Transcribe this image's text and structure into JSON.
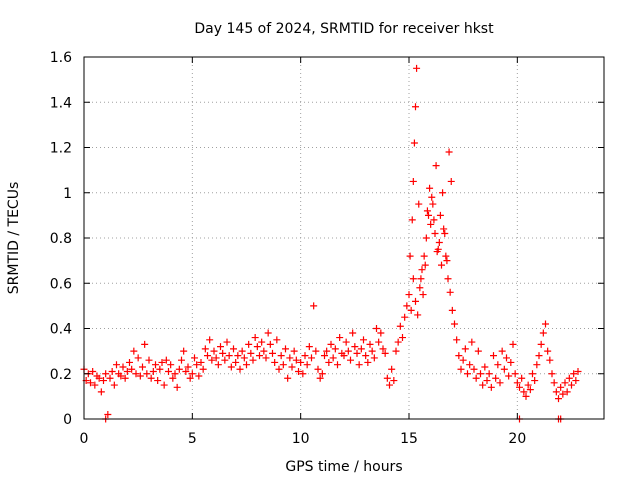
{
  "chart_data": {
    "type": "scatter",
    "title": "Day 145 of 2024, SRMTID for receiver hkst",
    "xlabel": "GPS time / hours",
    "ylabel": "SRMTID / TECUs",
    "xlim": [
      0,
      24
    ],
    "ylim": [
      0,
      1.6
    ],
    "grid": true,
    "xticks": [
      0,
      5,
      10,
      15,
      20
    ],
    "xtick_labels": [
      "0",
      "5",
      "10",
      "15",
      "20"
    ],
    "yticks": [
      0,
      0.2,
      0.4,
      0.6,
      0.8,
      1.0,
      1.2,
      1.4,
      1.6
    ],
    "ytick_labels": [
      "0",
      "0.2",
      "0.4",
      "0.6",
      "0.8",
      "1",
      "1.2",
      "1.4",
      "1.6"
    ],
    "marker": "+",
    "series": [
      {
        "name": "SRMTID",
        "color": "#ff0000",
        "x": [
          0.0,
          0.1,
          0.2,
          0.3,
          0.4,
          0.5,
          0.6,
          0.7,
          0.8,
          0.9,
          1.0,
          1.1,
          1.2,
          1.3,
          1.4,
          1.5,
          1.6,
          1.7,
          1.8,
          1.9,
          2.0,
          2.1,
          2.2,
          2.3,
          2.4,
          2.5,
          2.6,
          2.7,
          2.8,
          2.9,
          3.0,
          3.1,
          3.2,
          3.3,
          3.4,
          3.5,
          3.6,
          3.7,
          3.8,
          3.9,
          4.0,
          4.1,
          4.2,
          4.3,
          4.4,
          4.5,
          4.6,
          4.7,
          4.8,
          4.9,
          5.0,
          5.1,
          5.2,
          5.3,
          5.4,
          5.5,
          5.6,
          5.7,
          5.8,
          5.9,
          6.0,
          6.1,
          6.2,
          6.3,
          6.4,
          6.5,
          6.6,
          6.7,
          6.8,
          6.9,
          7.0,
          7.1,
          7.2,
          7.3,
          7.4,
          7.5,
          7.6,
          7.7,
          7.8,
          7.9,
          8.0,
          8.1,
          8.2,
          8.3,
          8.4,
          8.5,
          8.6,
          8.7,
          8.8,
          8.9,
          9.0,
          9.1,
          9.2,
          9.3,
          9.4,
          9.5,
          9.6,
          9.7,
          9.8,
          9.9,
          10.0,
          10.1,
          10.2,
          10.3,
          10.4,
          10.5,
          10.6,
          10.7,
          10.8,
          10.9,
          11.0,
          11.1,
          11.2,
          11.3,
          11.4,
          11.5,
          11.6,
          11.7,
          11.8,
          11.9,
          12.0,
          12.1,
          12.2,
          12.3,
          12.4,
          12.5,
          12.6,
          12.7,
          12.8,
          12.9,
          13.0,
          13.1,
          13.2,
          13.3,
          13.4,
          13.5,
          13.6,
          13.7,
          13.8,
          13.9,
          14.0,
          14.1,
          14.2,
          14.3,
          14.4,
          14.5,
          14.6,
          14.7,
          14.8,
          14.9,
          15.0,
          15.1,
          15.2,
          15.3,
          15.4,
          15.5,
          15.6,
          15.7,
          15.8,
          15.9,
          16.0,
          16.1,
          16.2,
          16.3,
          16.4,
          16.5,
          16.6,
          16.7,
          16.8,
          16.9,
          17.0,
          17.1,
          17.2,
          17.3,
          17.4,
          17.5,
          17.6,
          17.7,
          17.8,
          17.9,
          18.0,
          18.1,
          18.2,
          18.3,
          18.4,
          18.5,
          18.6,
          18.7,
          18.8,
          18.9,
          19.0,
          19.1,
          19.2,
          19.3,
          19.4,
          19.5,
          19.6,
          19.7,
          19.8,
          19.9,
          20.0,
          20.1,
          20.2,
          20.3,
          20.4,
          20.5,
          20.6,
          20.7,
          20.8,
          20.9,
          21.0,
          21.1,
          21.2,
          21.3,
          21.4,
          21.5,
          21.6,
          21.7,
          21.8,
          21.9,
          22.0,
          22.1,
          22.2,
          22.3,
          22.4,
          22.5,
          22.6,
          22.7,
          22.8,
          15.05,
          15.15,
          15.2,
          15.25,
          15.3,
          15.35,
          15.45,
          15.55,
          15.65,
          15.75,
          15.85,
          15.95,
          16.05,
          16.15,
          16.25,
          16.35,
          16.45,
          16.55,
          16.65,
          16.75,
          16.85,
          16.95,
          1.0,
          20.1,
          21.9,
          22.0
        ],
        "y": [
          0.22,
          0.17,
          0.2,
          0.16,
          0.21,
          0.15,
          0.19,
          0.18,
          0.12,
          0.17,
          0.2,
          0.02,
          0.18,
          0.21,
          0.15,
          0.24,
          0.2,
          0.19,
          0.23,
          0.18,
          0.21,
          0.25,
          0.22,
          0.3,
          0.2,
          0.27,
          0.19,
          0.23,
          0.33,
          0.2,
          0.26,
          0.18,
          0.21,
          0.24,
          0.17,
          0.22,
          0.25,
          0.15,
          0.26,
          0.21,
          0.24,
          0.18,
          0.2,
          0.14,
          0.22,
          0.26,
          0.3,
          0.21,
          0.23,
          0.18,
          0.2,
          0.27,
          0.24,
          0.19,
          0.25,
          0.22,
          0.31,
          0.28,
          0.35,
          0.26,
          0.3,
          0.27,
          0.24,
          0.32,
          0.29,
          0.26,
          0.34,
          0.28,
          0.23,
          0.31,
          0.25,
          0.28,
          0.22,
          0.3,
          0.27,
          0.24,
          0.33,
          0.29,
          0.26,
          0.36,
          0.32,
          0.28,
          0.34,
          0.3,
          0.27,
          0.38,
          0.33,
          0.29,
          0.25,
          0.35,
          0.22,
          0.28,
          0.24,
          0.31,
          0.18,
          0.27,
          0.23,
          0.3,
          0.26,
          0.21,
          0.25,
          0.2,
          0.28,
          0.24,
          0.32,
          0.27,
          0.5,
          0.3,
          0.22,
          0.18,
          0.2,
          0.28,
          0.3,
          0.25,
          0.33,
          0.27,
          0.31,
          0.24,
          0.36,
          0.29,
          0.28,
          0.34,
          0.3,
          0.26,
          0.38,
          0.32,
          0.29,
          0.24,
          0.31,
          0.35,
          0.28,
          0.25,
          0.33,
          0.3,
          0.27,
          0.4,
          0.34,
          0.38,
          0.31,
          0.29,
          0.18,
          0.15,
          0.22,
          0.17,
          0.3,
          0.34,
          0.41,
          0.36,
          0.45,
          0.5,
          0.55,
          0.48,
          0.62,
          0.52,
          0.46,
          0.58,
          0.66,
          0.72,
          0.8,
          0.9,
          0.86,
          0.95,
          0.82,
          0.74,
          0.78,
          0.68,
          0.84,
          0.72,
          0.62,
          0.56,
          0.48,
          0.42,
          0.35,
          0.28,
          0.22,
          0.26,
          0.31,
          0.2,
          0.24,
          0.34,
          0.22,
          0.18,
          0.3,
          0.2,
          0.15,
          0.23,
          0.17,
          0.2,
          0.14,
          0.28,
          0.18,
          0.24,
          0.16,
          0.3,
          0.22,
          0.27,
          0.19,
          0.25,
          0.33,
          0.2,
          0.16,
          0.14,
          0.18,
          0.12,
          0.1,
          0.15,
          0.13,
          0.2,
          0.17,
          0.24,
          0.28,
          0.33,
          0.38,
          0.42,
          0.3,
          0.26,
          0.2,
          0.16,
          0.12,
          0.09,
          0.14,
          0.11,
          0.16,
          0.12,
          0.18,
          0.15,
          0.2,
          0.17,
          0.21,
          0.72,
          0.88,
          1.05,
          1.22,
          1.38,
          1.55,
          0.95,
          0.62,
          0.55,
          0.68,
          0.92,
          1.02,
          0.98,
          0.88,
          1.12,
          0.75,
          0.9,
          1.0,
          0.82,
          0.7,
          1.18,
          1.05,
          0.0,
          0.0,
          0.0,
          0.0
        ]
      }
    ]
  }
}
